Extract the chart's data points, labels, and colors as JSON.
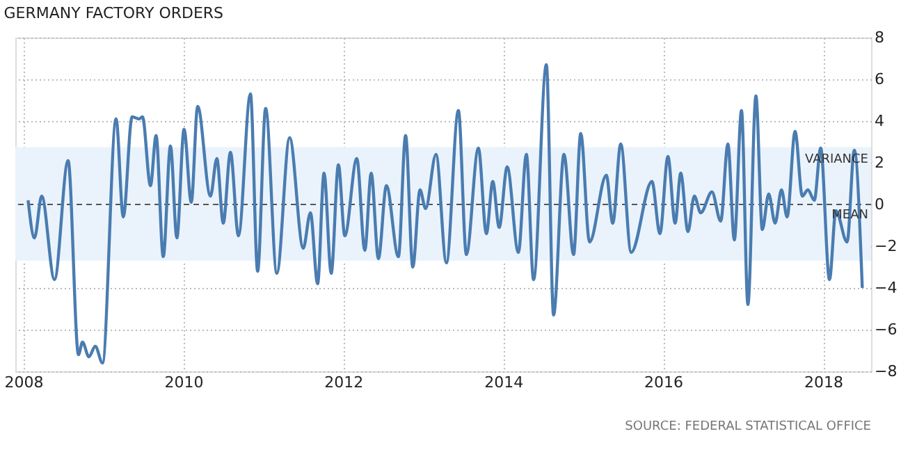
{
  "chart_data": {
    "type": "line",
    "title": "GERMANY FACTORY ORDERS",
    "series": [
      {
        "color": "#4a7cb0",
        "x": [
          2008.06,
          2008.14,
          2008.23,
          2008.39,
          2008.56,
          2008.69,
          2008.74,
          2008.82,
          2008.9,
          2008.99,
          2009.16,
          2009.25,
          2009.36,
          2009.45,
          2009.49,
          2009.59,
          2009.66,
          2009.75,
          2009.84,
          2009.92,
          2010.01,
          2010.1,
          2010.18,
          2010.34,
          2010.42,
          2010.5,
          2010.59,
          2010.69,
          2010.84,
          2010.93,
          2011.03,
          2011.17,
          2011.33,
          2011.5,
          2011.59,
          2011.68,
          2011.76,
          2011.85,
          2011.94,
          2012.02,
          2012.17,
          2012.27,
          2012.35,
          2012.44,
          2012.54,
          2012.69,
          2012.78,
          2012.87,
          2012.96,
          2013.03,
          2013.16,
          2013.29,
          2013.44,
          2013.54,
          2013.69,
          2013.79,
          2013.87,
          2013.95,
          2014.05,
          2014.19,
          2014.29,
          2014.38,
          2014.54,
          2014.63,
          2014.76,
          2014.88,
          2014.97,
          2015.08,
          2015.29,
          2015.37,
          2015.47,
          2015.6,
          2015.86,
          2015.96,
          2016.06,
          2016.15,
          2016.22,
          2016.31,
          2016.39,
          2016.47,
          2016.61,
          2016.72,
          2016.81,
          2016.89,
          2016.98,
          2017.06,
          2017.16,
          2017.24,
          2017.32,
          2017.4,
          2017.48,
          2017.55,
          2017.65,
          2017.74,
          2017.81,
          2017.89,
          2017.97,
          2018.08,
          2018.16,
          2018.3,
          2018.39,
          2018.49
        ],
        "values": [
          0.2,
          -1.6,
          0.4,
          -3.6,
          2.1,
          -7.2,
          -6.6,
          -7.3,
          -6.8,
          -7.6,
          4.1,
          -0.6,
          4.2,
          4.1,
          4.2,
          0.9,
          3.3,
          -2.5,
          2.8,
          -1.6,
          3.6,
          0.1,
          4.7,
          0.4,
          2.2,
          -0.9,
          2.5,
          -1.5,
          5.3,
          -3.2,
          4.6,
          -3.3,
          3.2,
          -2.1,
          -0.4,
          -3.8,
          1.5,
          -3.3,
          1.9,
          -1.5,
          2.2,
          -2.2,
          1.5,
          -2.6,
          0.9,
          -2.5,
          3.3,
          -3.0,
          0.7,
          -0.2,
          2.4,
          -2.8,
          4.5,
          -2.4,
          2.7,
          -1.4,
          1.1,
          -1.1,
          1.8,
          -2.3,
          2.4,
          -3.6,
          6.7,
          -5.3,
          2.4,
          -2.4,
          3.4,
          -1.8,
          1.4,
          -0.9,
          2.9,
          -2.3,
          1.1,
          -1.4,
          2.3,
          -0.9,
          1.5,
          -1.3,
          0.4,
          -0.4,
          0.6,
          -0.8,
          2.9,
          -1.7,
          4.5,
          -4.8,
          5.2,
          -1.2,
          0.5,
          -0.9,
          0.7,
          -0.6,
          3.5,
          0.4,
          0.7,
          0.2,
          2.7,
          -3.6,
          -0.3,
          -1.8,
          2.6,
          -4.0
        ]
      }
    ],
    "xlim": [
      2007.9,
      2018.6
    ],
    "xticks": [
      2008,
      2010,
      2012,
      2014,
      2016,
      2018
    ],
    "ylim": [
      -8,
      8
    ],
    "yticks": [
      -8,
      -6,
      -4,
      -2,
      0,
      2,
      4,
      6,
      8
    ],
    "grid": true,
    "marker": "none",
    "line_style": "solid",
    "ref_lines": [
      {
        "axis": "y",
        "value": 0,
        "label": "MEAN",
        "color": "#555555",
        "line_style": "dashed"
      }
    ],
    "bands": [
      {
        "axis": "y",
        "from": -2.7,
        "to": 2.75,
        "label": "VARIANCE",
        "color": "#eaf3fc"
      }
    ],
    "annotations": [
      "SOURCE: FEDERAL STATISTICAL OFFICE"
    ]
  }
}
